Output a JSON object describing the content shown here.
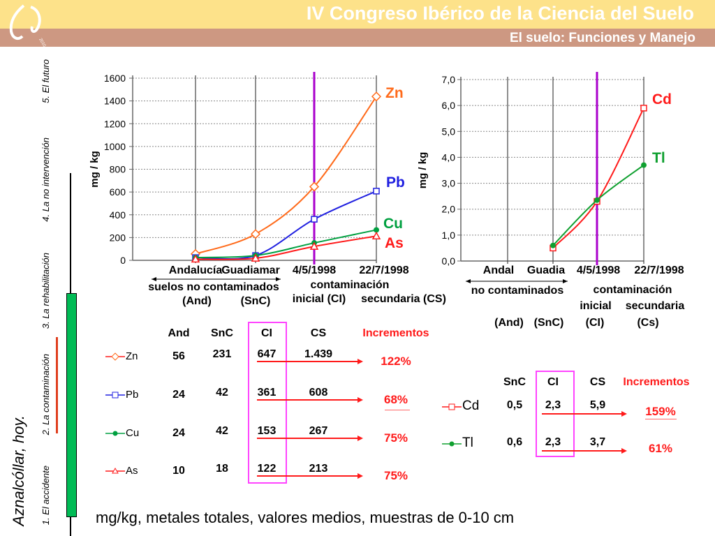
{
  "header": {
    "title": "IV Congreso Ibérico de la Ciencia del Suelo",
    "subtitle": "El suelo: Funciones y Manejo",
    "logo_text": "2010"
  },
  "sidebar": {
    "heading": "Aznalcóllar, hoy.",
    "items": [
      {
        "label": "1. El accidente"
      },
      {
        "label": "2. La contaminación",
        "active": true
      },
      {
        "label": "3. La rehabilitación"
      },
      {
        "label": "4. La no intervención"
      },
      {
        "label": "5. El futuro"
      }
    ]
  },
  "colors": {
    "Zn": "#ff6a1a",
    "Pb": "#2020e0",
    "Cu": "#00a040",
    "As": "#ff1a1a",
    "Cd": "#ff1a1a",
    "Tl": "#10a030",
    "highlight": "#aa00cc",
    "box": "#ff44ff",
    "progress": "#00bb55"
  },
  "chart_data": [
    {
      "type": "line",
      "ylabel": "mg / kg",
      "ylim": [
        0,
        1600
      ],
      "yticks": [
        "0",
        "200",
        "400",
        "600",
        "800",
        "1000",
        "1200",
        "1400",
        "1600"
      ],
      "grid": true,
      "categories": [
        "Andalucía",
        "Guadiamar",
        "4/5/1998",
        "22/7/1998"
      ],
      "x_annotations": {
        "range_label": "suelos  no contaminados",
        "and": "(And)",
        "snc": "(SnC)",
        "cont": "contaminación",
        "ci": "inicial (CI)",
        "cs": "secundaria  (CS)"
      },
      "highlight_category": "4/5/1998",
      "series": [
        {
          "name": "Zn",
          "marker": "diamond",
          "values": [
            56,
            231,
            647,
            1439
          ]
        },
        {
          "name": "Pb",
          "marker": "square",
          "values": [
            24,
            42,
            361,
            608
          ]
        },
        {
          "name": "Cu",
          "marker": "circle",
          "values": [
            24,
            42,
            153,
            267
          ]
        },
        {
          "name": "As",
          "marker": "triangle",
          "values": [
            10,
            18,
            122,
            213
          ]
        }
      ]
    },
    {
      "type": "line",
      "ylabel": "mg / kg",
      "ylim": [
        0,
        7
      ],
      "yticks": [
        "0,0",
        "1,0",
        "2,0",
        "3,0",
        "4,0",
        "5,0",
        "6,0",
        "7,0"
      ],
      "grid": true,
      "categories": [
        "Andal",
        "Guadia",
        "4/5/1998",
        "22/7/1998"
      ],
      "x_annotations": {
        "range_label": "no contaminados",
        "cont": "contaminación",
        "inicial": "inicial",
        "secundaria": "secundaria",
        "and": "(And)",
        "snc": "(SnC)",
        "ci": "(CI)",
        "cs": "(Cs)"
      },
      "highlight_category": "4/5/1998",
      "series": [
        {
          "name": "Cd",
          "marker": "square",
          "values": [
            null,
            0.5,
            2.3,
            5.9
          ]
        },
        {
          "name": "Tl",
          "marker": "circle",
          "values": [
            null,
            0.6,
            2.35,
            3.7
          ]
        }
      ]
    }
  ],
  "table1": {
    "headers": [
      "And",
      "SnC",
      "CI",
      "CS",
      "Incrementos"
    ],
    "rows": [
      {
        "name": "Zn",
        "values": [
          "56",
          "231",
          "647",
          "1.439"
        ],
        "increment": "122%"
      },
      {
        "name": "Pb",
        "values": [
          "24",
          "42",
          "361",
          "608"
        ],
        "increment": "68%"
      },
      {
        "name": "Cu",
        "values": [
          "24",
          "42",
          "153",
          "267"
        ],
        "increment": "75%"
      },
      {
        "name": "As",
        "values": [
          "10",
          "18",
          "122",
          "213"
        ],
        "increment": "75%"
      }
    ]
  },
  "table2": {
    "headers": [
      "SnC",
      "CI",
      "CS",
      "Incrementos"
    ],
    "rows": [
      {
        "name": "Cd",
        "values": [
          "0,5",
          "2,3",
          "5,9"
        ],
        "increment": "159%"
      },
      {
        "name": "Tl",
        "values": [
          "0,6",
          "2,3",
          "3,7"
        ],
        "increment": "61%"
      }
    ]
  },
  "footer": "mg/kg, metales totales, valores medios, muestras de 0-10 cm"
}
